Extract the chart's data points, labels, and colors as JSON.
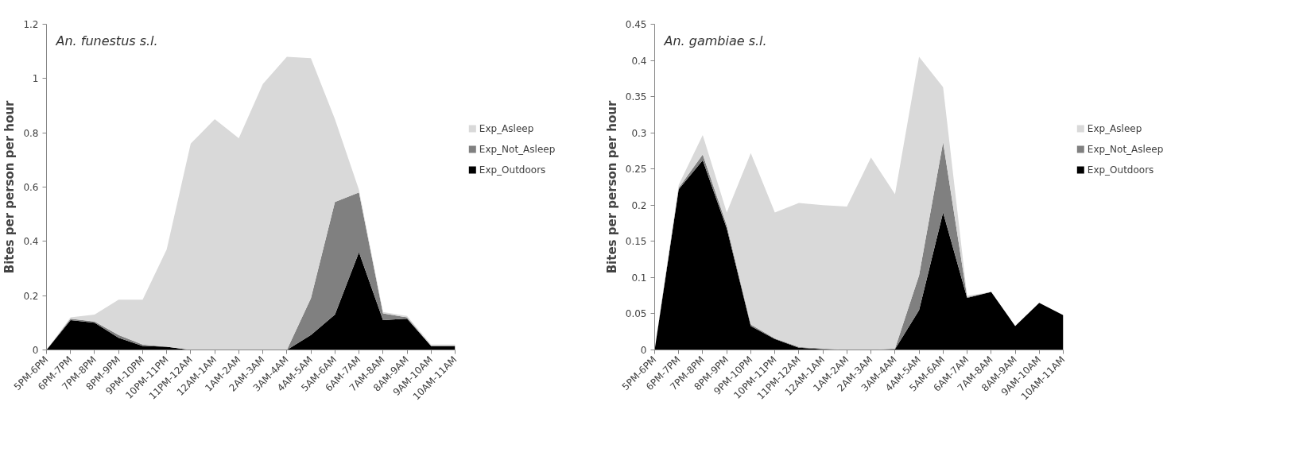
{
  "chart_data": [
    {
      "type": "area",
      "stacked": true,
      "title": "An. funestus s.l.",
      "ylabel": "Bites per person per hour",
      "categories": [
        "5PM-6PM",
        "6PM-7PM",
        "7PM-8PM",
        "8PM-9PM",
        "9PM-10PM",
        "10PM-11PM",
        "11PM-12AM",
        "12AM-1AM",
        "1AM-2AM",
        "2AM-3AM",
        "3AM-4AM",
        "4AM-5AM",
        "5AM-6AM",
        "6AM-7AM",
        "7AM-8AM",
        "8AM-9AM",
        "9AM-10AM",
        "10AM-11AM"
      ],
      "series": [
        {
          "name": "Exp_Outdoors",
          "color": "#000000",
          "values": [
            0,
            0.11,
            0.1,
            0.045,
            0.015,
            0.012,
            0,
            0,
            0,
            0,
            0,
            0.055,
            0.13,
            0.36,
            0.11,
            0.115,
            0.015,
            0.015
          ]
        },
        {
          "name": "Exp_Not_Asleep",
          "color": "#808080",
          "values": [
            0,
            0.005,
            0.005,
            0.01,
            0.005,
            0,
            0,
            0,
            0,
            0,
            0,
            0.135,
            0.415,
            0.22,
            0.025,
            0.005,
            0,
            0
          ]
        },
        {
          "name": "Exp_Asleep",
          "color": "#d9d9d9",
          "values": [
            0,
            0.005,
            0.025,
            0.13,
            0.165,
            0.358,
            0.76,
            0.85,
            0.78,
            0.98,
            1.08,
            0.885,
            0.305,
            0.01,
            0.005,
            0.005,
            0.005,
            0.005
          ]
        }
      ],
      "ylim": [
        0,
        1.2
      ],
      "yticks": [
        0,
        0.2,
        0.4,
        0.6,
        0.8,
        1,
        1.2
      ],
      "grid": false,
      "legend": "right"
    },
    {
      "type": "area",
      "stacked": true,
      "title": "An. gambiae s.l.",
      "ylabel": "Bites per person per hour",
      "categories": [
        "5PM-6PM",
        "6PM-7PM",
        "7PM-8PM",
        "8PM-9PM",
        "9PM-10PM",
        "10PM-11PM",
        "11PM-12AM",
        "12AM-1AM",
        "1AM-2AM",
        "2AM-3AM",
        "3AM-4AM",
        "4AM-5AM",
        "5AM-6AM",
        "6AM-7AM",
        "7AM-8AM",
        "8AM-9AM",
        "9AM-10AM",
        "10AM-11AM"
      ],
      "series": [
        {
          "name": "Exp_Outdoors",
          "color": "#000000",
          "values": [
            0,
            0.222,
            0.262,
            0.168,
            0.033,
            0.015,
            0.003,
            0.001,
            0,
            0,
            0.001,
            0.055,
            0.19,
            0.072,
            0.08,
            0.033,
            0.065,
            0.048
          ]
        },
        {
          "name": "Exp_Not_Asleep",
          "color": "#808080",
          "values": [
            0,
            0.002,
            0.008,
            0.004,
            0.002,
            0.001,
            0.001,
            0.001,
            0,
            0,
            0.001,
            0.048,
            0.097,
            0.001,
            0,
            0,
            0,
            0
          ]
        },
        {
          "name": "Exp_Asleep",
          "color": "#d9d9d9",
          "values": [
            0,
            0.004,
            0.027,
            0.018,
            0.237,
            0.174,
            0.199,
            0.198,
            0.198,
            0.266,
            0.213,
            0.302,
            0.076,
            0.002,
            0,
            0,
            0,
            0
          ]
        }
      ],
      "ylim": [
        0,
        0.45
      ],
      "yticks": [
        0,
        0.05,
        0.1,
        0.15,
        0.2,
        0.25,
        0.3,
        0.35,
        0.4,
        0.45
      ],
      "grid": false,
      "legend": "right"
    }
  ]
}
